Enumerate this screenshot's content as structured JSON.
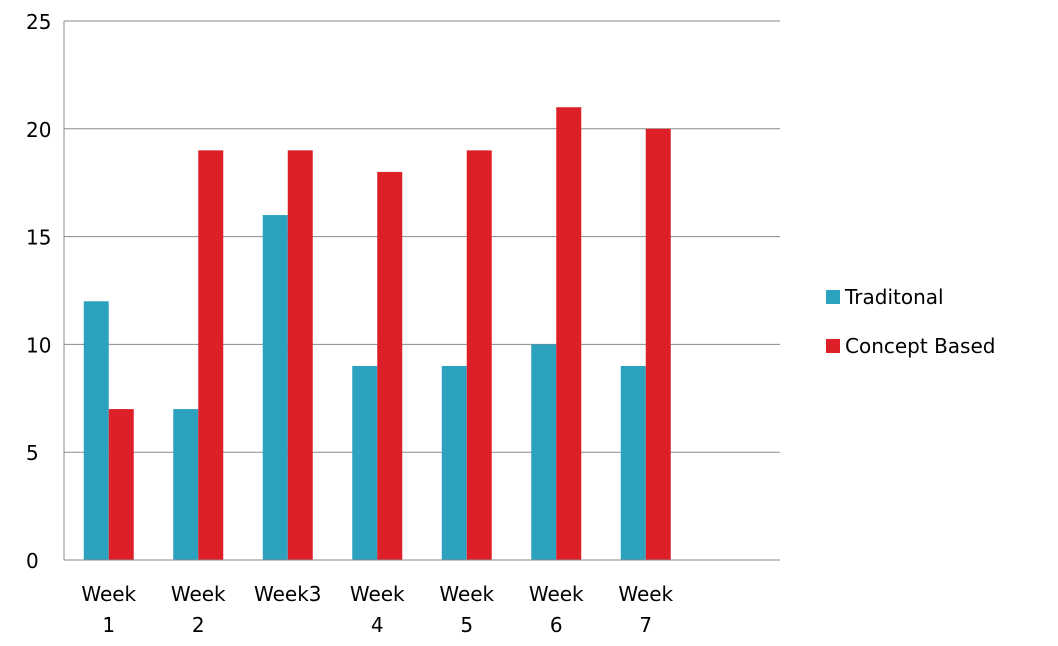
{
  "chart_data": {
    "type": "bar",
    "title": "",
    "xlabel": "",
    "ylabel": "",
    "categories": [
      "Week\n1",
      "Week\n2",
      "Week3",
      "Week\n4",
      "Week\n5",
      "Week\n6",
      "Week\n7"
    ],
    "series": [
      {
        "name": "Traditonal",
        "color": "#2ca2bf",
        "values": [
          12,
          7,
          16,
          9,
          9,
          10,
          9
        ]
      },
      {
        "name": "Concept Based",
        "color": "#dd1f28",
        "values": [
          7,
          19,
          19,
          18,
          19,
          21,
          20
        ]
      }
    ],
    "ylim": [
      0,
      25
    ],
    "yticks": [
      0,
      5,
      10,
      15,
      20,
      25
    ],
    "grid": true,
    "legend_position": "right",
    "empty_trailing_slots": 1
  }
}
